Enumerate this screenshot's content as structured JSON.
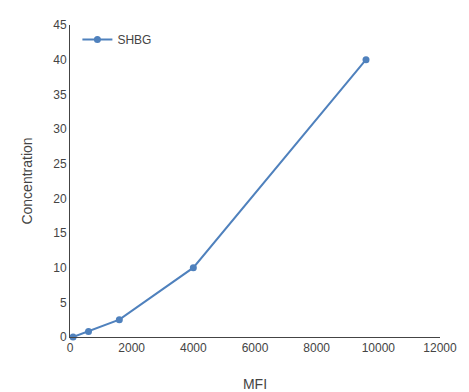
{
  "chart_data": {
    "type": "line",
    "x": [
      100,
      600,
      1600,
      4000,
      9600
    ],
    "series": [
      {
        "name": "SHBG",
        "color": "#4f81bd",
        "marker": "circle",
        "values": [
          0,
          0.8,
          2.5,
          10,
          40
        ]
      }
    ],
    "xlabel": "MFI",
    "ylabel": "Concentration",
    "xlim": [
      0,
      12000
    ],
    "ylim": [
      0,
      45
    ],
    "xticks": [
      0,
      2000,
      4000,
      6000,
      8000,
      10000,
      12000
    ],
    "yticks": [
      0,
      5,
      10,
      15,
      20,
      25,
      30,
      35,
      40,
      45
    ],
    "grid": false,
    "legend": "upper left"
  }
}
